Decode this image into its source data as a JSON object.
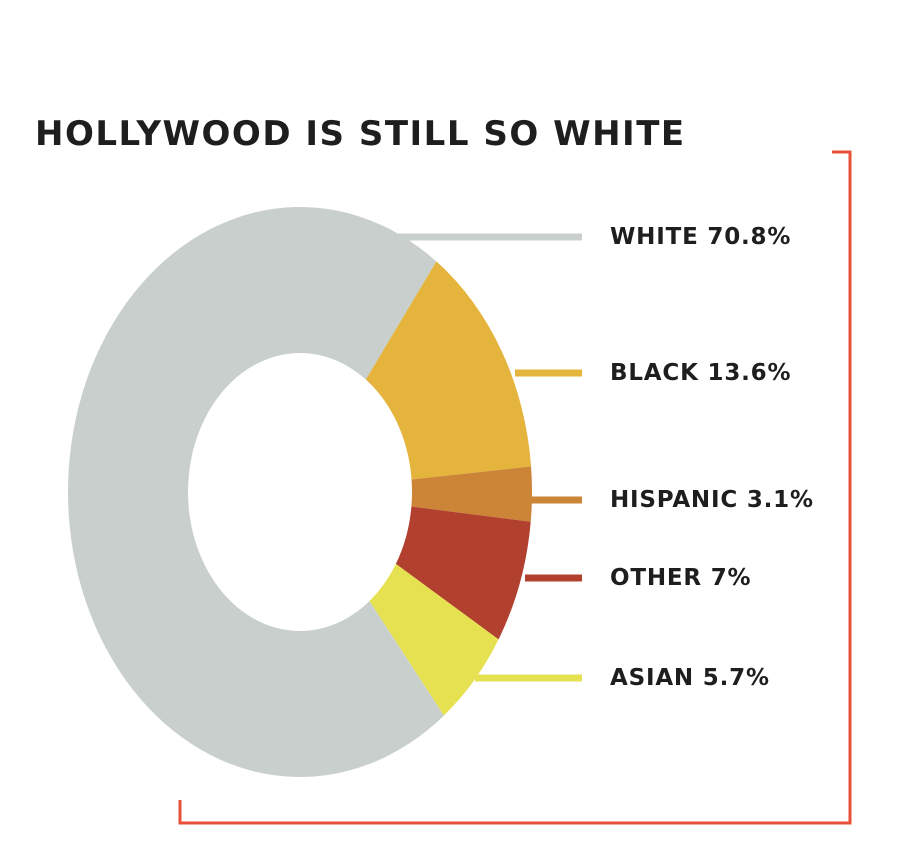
{
  "chart_data": {
    "type": "donut",
    "title": "HOLLYWOOD IS STILL SO WHITE",
    "categories": [
      "WHITE",
      "BLACK",
      "HISPANIC",
      "OTHER",
      "ASIAN"
    ],
    "values": [
      70.8,
      13.6,
      3.1,
      7,
      5.7
    ],
    "value_labels": [
      "70.8%",
      "13.6%",
      "3.1%",
      "7%",
      "5.7%"
    ],
    "colors": [
      "#c9cfcc",
      "#e4b43c",
      "#cc8436",
      "#b2402f",
      "#e6e150"
    ]
  }
}
